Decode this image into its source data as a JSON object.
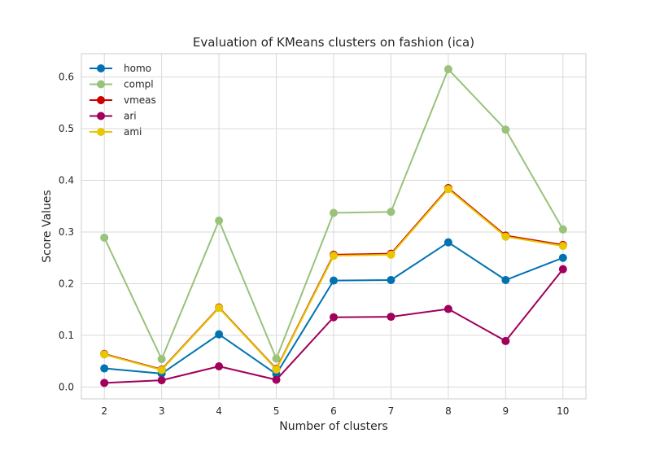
{
  "chart_data": {
    "type": "line",
    "title": "Evaluation of KMeans clusters on fashion (ica)",
    "xlabel": "Number of clusters",
    "ylabel": "Score Values",
    "x": [
      2,
      3,
      4,
      5,
      6,
      7,
      8,
      9,
      10
    ],
    "xlim": [
      1.6,
      10.4
    ],
    "ylim": [
      -0.023,
      0.645
    ],
    "yticks": [
      0.0,
      0.1,
      0.2,
      0.3,
      0.4,
      0.5,
      0.6
    ],
    "ytick_labels": [
      "0.0",
      "0.1",
      "0.2",
      "0.3",
      "0.4",
      "0.5",
      "0.6"
    ],
    "xtick_labels": [
      "2",
      "3",
      "4",
      "5",
      "6",
      "7",
      "8",
      "9",
      "10"
    ],
    "grid": true,
    "legend_position": "top-left",
    "series": [
      {
        "name": "homo",
        "color": "#0072b2",
        "values": [
          0.036,
          0.026,
          0.102,
          0.025,
          0.206,
          0.207,
          0.28,
          0.207,
          0.25
        ]
      },
      {
        "name": "compl",
        "color": "#99c27a",
        "values": [
          0.289,
          0.054,
          0.322,
          0.055,
          0.337,
          0.339,
          0.615,
          0.498,
          0.305
        ]
      },
      {
        "name": "vmeas",
        "color": "#cc0000",
        "values": [
          0.064,
          0.034,
          0.154,
          0.035,
          0.256,
          0.258,
          0.385,
          0.293,
          0.275
        ]
      },
      {
        "name": "ari",
        "color": "#a0005a",
        "values": [
          0.008,
          0.013,
          0.04,
          0.014,
          0.135,
          0.136,
          0.151,
          0.089,
          0.228
        ]
      },
      {
        "name": "ami",
        "color": "#e6c700",
        "values": [
          0.063,
          0.033,
          0.153,
          0.034,
          0.254,
          0.256,
          0.383,
          0.291,
          0.273
        ]
      }
    ]
  }
}
